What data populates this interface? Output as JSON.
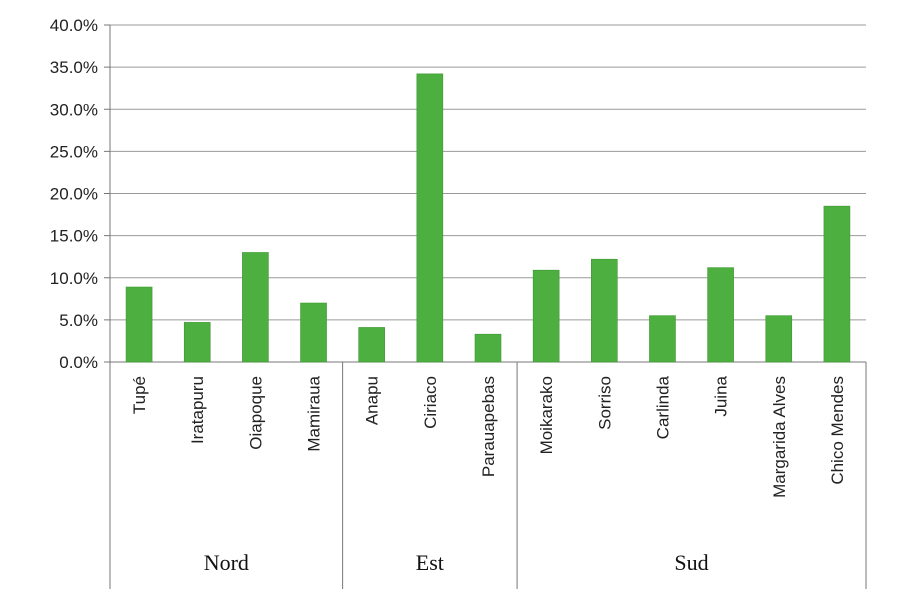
{
  "chart_data": {
    "type": "bar",
    "title": "",
    "xlabel": "",
    "ylabel": "",
    "ylim": [
      0,
      40
    ],
    "y_ticks": [
      "0.0%",
      "5.0%",
      "10.0%",
      "15.0%",
      "20.0%",
      "25.0%",
      "30.0%",
      "35.0%",
      "40.0%"
    ],
    "y_tick_values": [
      0,
      5,
      10,
      15,
      20,
      25,
      30,
      35,
      40
    ],
    "grid": true,
    "bar_color": "#4caf3f",
    "categories": [
      "Tupé",
      "Iratapuru",
      "Oiapoque",
      "Mamiraua",
      "Anapu",
      "Ciriaco",
      "Parauapebas",
      "Moikarako",
      "Sorriso",
      "Carlinda",
      "Juina",
      "Margarida Alves",
      "Chico Mendes"
    ],
    "values": [
      8.9,
      4.7,
      13.0,
      7.0,
      4.1,
      34.2,
      3.3,
      10.9,
      12.2,
      5.5,
      11.2,
      5.5,
      18.5
    ],
    "groups": [
      {
        "label": "Nord",
        "count": 4
      },
      {
        "label": "Est",
        "count": 3
      },
      {
        "label": "Sud",
        "count": 6
      }
    ]
  }
}
